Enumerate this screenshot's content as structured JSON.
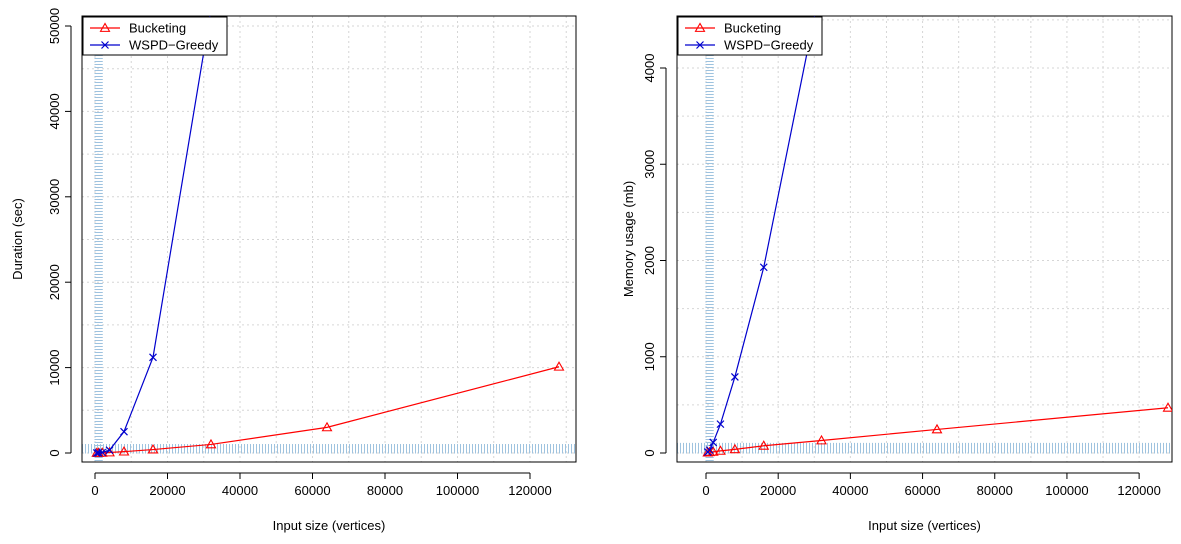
{
  "chart_data": [
    {
      "type": "line",
      "xlabel": "Input size (vertices)",
      "ylabel": "Duration (sec)",
      "xlim": [
        0,
        128000
      ],
      "ylim": [
        0,
        50000
      ],
      "xticks": [
        0,
        20000,
        40000,
        60000,
        80000,
        100000,
        120000
      ],
      "yticks": [
        0,
        10000,
        20000,
        30000,
        40000,
        50000
      ],
      "grid": true,
      "legend_position": "top-left",
      "series": [
        {
          "name": "Bucketing",
          "color": "#ff0000",
          "marker": "triangle",
          "x": [
            500,
            1000,
            2000,
            4000,
            8000,
            16000,
            32000,
            64000,
            128000
          ],
          "y": [
            5,
            10,
            25,
            60,
            160,
            400,
            1000,
            3000,
            10100
          ]
        },
        {
          "name": "WSPD−Greedy",
          "color": "#0000cd",
          "marker": "x",
          "x": [
            500,
            1000,
            2000,
            4000,
            8000,
            16000,
            32000
          ],
          "y": [
            5,
            20,
            60,
            330,
            2500,
            11200,
            52000
          ]
        }
      ]
    },
    {
      "type": "line",
      "xlabel": "Input size (vertices)",
      "ylabel": "Memory usage (mb)",
      "xlim": [
        0,
        128000
      ],
      "ylim": [
        0,
        4200
      ],
      "xticks": [
        0,
        20000,
        40000,
        60000,
        80000,
        100000,
        120000
      ],
      "yticks": [
        0,
        1000,
        2000,
        3000,
        4000
      ],
      "grid": true,
      "legend_position": "top-left",
      "series": [
        {
          "name": "Bucketing",
          "color": "#ff0000",
          "marker": "triangle",
          "x": [
            500,
            1000,
            2000,
            4000,
            8000,
            16000,
            32000,
            64000,
            128000
          ],
          "y": [
            5,
            8,
            12,
            22,
            38,
            75,
            130,
            245,
            470
          ]
        },
        {
          "name": "WSPD−Greedy",
          "color": "#0000cd",
          "marker": "x",
          "x": [
            500,
            1000,
            2000,
            4000,
            8000,
            16000,
            32000
          ],
          "y": [
            10,
            30,
            110,
            300,
            790,
            1930,
            4900
          ]
        }
      ]
    }
  ]
}
